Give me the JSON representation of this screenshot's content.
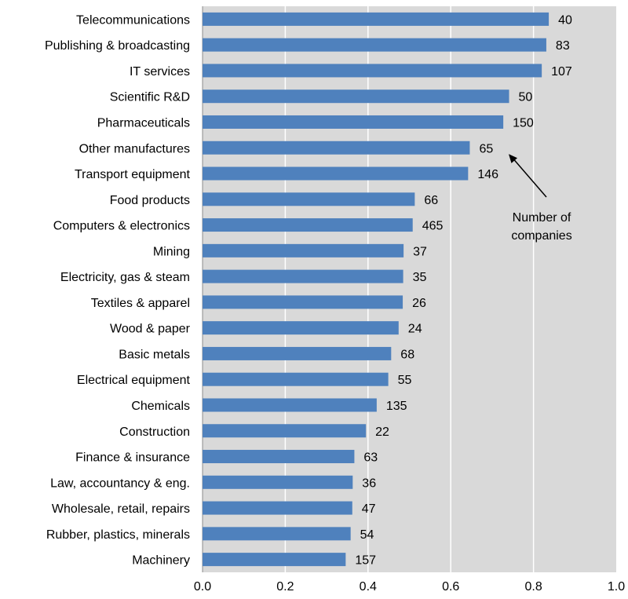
{
  "chart_data": {
    "type": "bar",
    "orientation": "horizontal",
    "categories": [
      "Telecommunications",
      "Publishing & broadcasting",
      "IT services",
      "Scientific R&D",
      "Pharmaceuticals",
      "Other manufactures",
      "Transport equipment",
      "Food products",
      "Computers & electronics",
      "Mining",
      "Electricity, gas & steam",
      "Textiles & apparel",
      "Wood & paper",
      "Basic metals",
      "Electrical equipment",
      "Chemicals",
      "Construction",
      "Finance & insurance",
      "Law, accountancy & eng.",
      "Wholesale, retail, repairs",
      "Rubber, plastics, minerals",
      "Machinery"
    ],
    "values": [
      0.837,
      0.831,
      0.82,
      0.741,
      0.727,
      0.646,
      0.642,
      0.513,
      0.508,
      0.486,
      0.485,
      0.484,
      0.474,
      0.456,
      0.449,
      0.421,
      0.395,
      0.367,
      0.363,
      0.362,
      0.358,
      0.346
    ],
    "data_labels": [
      "40",
      "83",
      "107",
      "50",
      "150",
      "65",
      "146",
      "66",
      "465",
      "37",
      "35",
      "26",
      "24",
      "68",
      "55",
      "135",
      "22",
      "63",
      "36",
      "47",
      "54",
      "157"
    ],
    "x_ticks": [
      "0.0",
      "0.2",
      "0.4",
      "0.6",
      "0.8",
      "1.0"
    ],
    "xlim": [
      0,
      1
    ],
    "grid": true,
    "bar_color": "#4f81bd",
    "plot_background": "#d9d9d9",
    "gridline_color": "#ffffff",
    "annotation": {
      "lines": [
        "Number of",
        "companies"
      ],
      "points_to_category": "Other manufactures"
    },
    "title": "",
    "xlabel": "",
    "ylabel": ""
  }
}
